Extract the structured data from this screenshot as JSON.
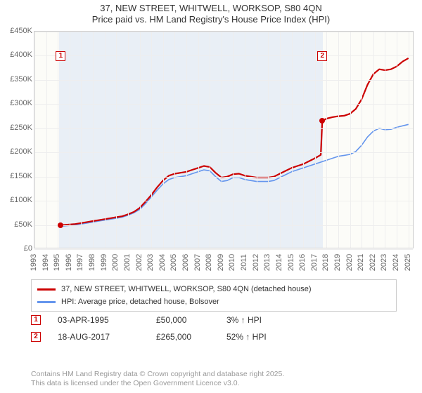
{
  "title_line1": "37, NEW STREET, WHITWELL, WORKSOP, S80 4QN",
  "title_line2": "Price paid vs. HM Land Registry's House Price Index (HPI)",
  "chart": {
    "type": "line",
    "background_color": "#fcfcf8",
    "grid_color": "#eeeeee",
    "border_color": "#cccccc",
    "xlim": [
      1993,
      2025.5
    ],
    "ylim": [
      0,
      450
    ],
    "y_ticks": [
      0,
      50,
      100,
      150,
      200,
      250,
      300,
      350,
      400,
      450
    ],
    "y_tick_labels": [
      "£0",
      "£50K",
      "£100K",
      "£150K",
      "£200K",
      "£250K",
      "£300K",
      "£350K",
      "£400K",
      "£450K"
    ],
    "y_tick_fontsize": 11,
    "x_ticks": [
      1993,
      1994,
      1995,
      1996,
      1997,
      1998,
      1999,
      2000,
      2001,
      2002,
      2003,
      2004,
      2005,
      2006,
      2007,
      2008,
      2009,
      2010,
      2011,
      2012,
      2013,
      2014,
      2015,
      2016,
      2017,
      2018,
      2019,
      2020,
      2021,
      2022,
      2023,
      2024,
      2025
    ],
    "x_tick_fontsize": 11,
    "series": {
      "price_paid": {
        "label": "37, NEW STREET, WHITWELL, WORKSOP, S80 4QN (detached house)",
        "color": "#cc0000",
        "line_width": 2.2,
        "data": [
          [
            1995.25,
            50
          ],
          [
            1995.5,
            50
          ],
          [
            1996,
            51
          ],
          [
            1996.5,
            52
          ],
          [
            1997,
            54
          ],
          [
            1997.5,
            56
          ],
          [
            1998,
            58
          ],
          [
            1998.5,
            60
          ],
          [
            1999,
            62
          ],
          [
            1999.5,
            64
          ],
          [
            2000,
            66
          ],
          [
            2000.5,
            68
          ],
          [
            2001,
            72
          ],
          [
            2001.5,
            77
          ],
          [
            2002,
            85
          ],
          [
            2002.5,
            98
          ],
          [
            2003,
            112
          ],
          [
            2003.5,
            128
          ],
          [
            2004,
            142
          ],
          [
            2004.5,
            152
          ],
          [
            2005,
            156
          ],
          [
            2005.5,
            158
          ],
          [
            2006,
            160
          ],
          [
            2006.5,
            164
          ],
          [
            2007,
            168
          ],
          [
            2007.5,
            172
          ],
          [
            2008,
            170
          ],
          [
            2008.5,
            158
          ],
          [
            2009,
            148
          ],
          [
            2009.5,
            150
          ],
          [
            2010,
            155
          ],
          [
            2010.5,
            156
          ],
          [
            2011,
            152
          ],
          [
            2011.5,
            150
          ],
          [
            2012,
            148
          ],
          [
            2012.5,
            148
          ],
          [
            2013,
            148
          ],
          [
            2013.5,
            150
          ],
          [
            2014,
            156
          ],
          [
            2014.5,
            162
          ],
          [
            2015,
            168
          ],
          [
            2015.5,
            172
          ],
          [
            2016,
            176
          ],
          [
            2016.5,
            182
          ],
          [
            2017,
            188
          ],
          [
            2017.5,
            195
          ],
          [
            2017.63,
            265
          ],
          [
            2018,
            270
          ],
          [
            2018.5,
            273
          ],
          [
            2019,
            275
          ],
          [
            2019.5,
            276
          ],
          [
            2020,
            280
          ],
          [
            2020.5,
            290
          ],
          [
            2021,
            310
          ],
          [
            2021.5,
            340
          ],
          [
            2022,
            362
          ],
          [
            2022.5,
            372
          ],
          [
            2023,
            370
          ],
          [
            2023.5,
            372
          ],
          [
            2024,
            378
          ],
          [
            2024.5,
            388
          ],
          [
            2025,
            395
          ]
        ]
      },
      "hpi": {
        "label": "HPI: Average price, detached house, Bolsover",
        "color": "#6495ed",
        "line_width": 1.6,
        "data": [
          [
            1995,
            48
          ],
          [
            1995.5,
            48
          ],
          [
            1996,
            49
          ],
          [
            1996.5,
            50
          ],
          [
            1997,
            52
          ],
          [
            1997.5,
            54
          ],
          [
            1998,
            56
          ],
          [
            1998.5,
            58
          ],
          [
            1999,
            60
          ],
          [
            1999.5,
            62
          ],
          [
            2000,
            64
          ],
          [
            2000.5,
            66
          ],
          [
            2001,
            70
          ],
          [
            2001.5,
            75
          ],
          [
            2002,
            82
          ],
          [
            2002.5,
            94
          ],
          [
            2003,
            108
          ],
          [
            2003.5,
            122
          ],
          [
            2004,
            135
          ],
          [
            2004.5,
            144
          ],
          [
            2005,
            148
          ],
          [
            2005.5,
            150
          ],
          [
            2006,
            152
          ],
          [
            2006.5,
            156
          ],
          [
            2007,
            160
          ],
          [
            2007.5,
            164
          ],
          [
            2008,
            162
          ],
          [
            2008.5,
            150
          ],
          [
            2009,
            140
          ],
          [
            2009.5,
            142
          ],
          [
            2010,
            148
          ],
          [
            2010.5,
            148
          ],
          [
            2011,
            144
          ],
          [
            2011.5,
            142
          ],
          [
            2012,
            140
          ],
          [
            2012.5,
            140
          ],
          [
            2013,
            140
          ],
          [
            2013.5,
            142
          ],
          [
            2014,
            148
          ],
          [
            2014.5,
            154
          ],
          [
            2015,
            160
          ],
          [
            2015.5,
            164
          ],
          [
            2016,
            168
          ],
          [
            2016.5,
            172
          ],
          [
            2017,
            176
          ],
          [
            2017.5,
            180
          ],
          [
            2018,
            184
          ],
          [
            2018.5,
            188
          ],
          [
            2019,
            192
          ],
          [
            2019.5,
            194
          ],
          [
            2020,
            196
          ],
          [
            2020.5,
            202
          ],
          [
            2021,
            215
          ],
          [
            2021.5,
            232
          ],
          [
            2022,
            244
          ],
          [
            2022.5,
            250
          ],
          [
            2023,
            247
          ],
          [
            2023.5,
            248
          ],
          [
            2024,
            252
          ],
          [
            2024.5,
            255
          ],
          [
            2025,
            258
          ]
        ]
      }
    },
    "sale_band": {
      "start": 1995.1,
      "end": 2017.7,
      "color": "rgba(100,149,237,0.12)"
    },
    "markers": [
      {
        "n": "1",
        "year": 1995.25,
        "top_y": 410
      },
      {
        "n": "2",
        "year": 2017.63,
        "top_y": 410
      }
    ],
    "sale_dots": [
      {
        "year": 1995.25,
        "price": 50
      },
      {
        "year": 2017.63,
        "price": 265
      }
    ]
  },
  "legend": {
    "border_color": "#cccccc",
    "items": [
      {
        "color": "#cc0000",
        "label": "37, NEW STREET, WHITWELL, WORKSOP, S80 4QN (detached house)"
      },
      {
        "color": "#6495ed",
        "label": "HPI: Average price, detached house, Bolsover"
      }
    ]
  },
  "transactions": [
    {
      "n": "1",
      "date": "03-APR-1995",
      "price": "£50,000",
      "pct": "3% ↑ HPI"
    },
    {
      "n": "2",
      "date": "18-AUG-2017",
      "price": "£265,000",
      "pct": "52% ↑ HPI"
    }
  ],
  "footer_line1": "Contains HM Land Registry data © Crown copyright and database right 2025.",
  "footer_line2": "This data is licensed under the Open Government Licence v3.0.",
  "colors": {
    "text": "#333333",
    "muted": "#999999",
    "tick": "#696969",
    "red": "#cc0000",
    "blue": "#6495ed"
  }
}
